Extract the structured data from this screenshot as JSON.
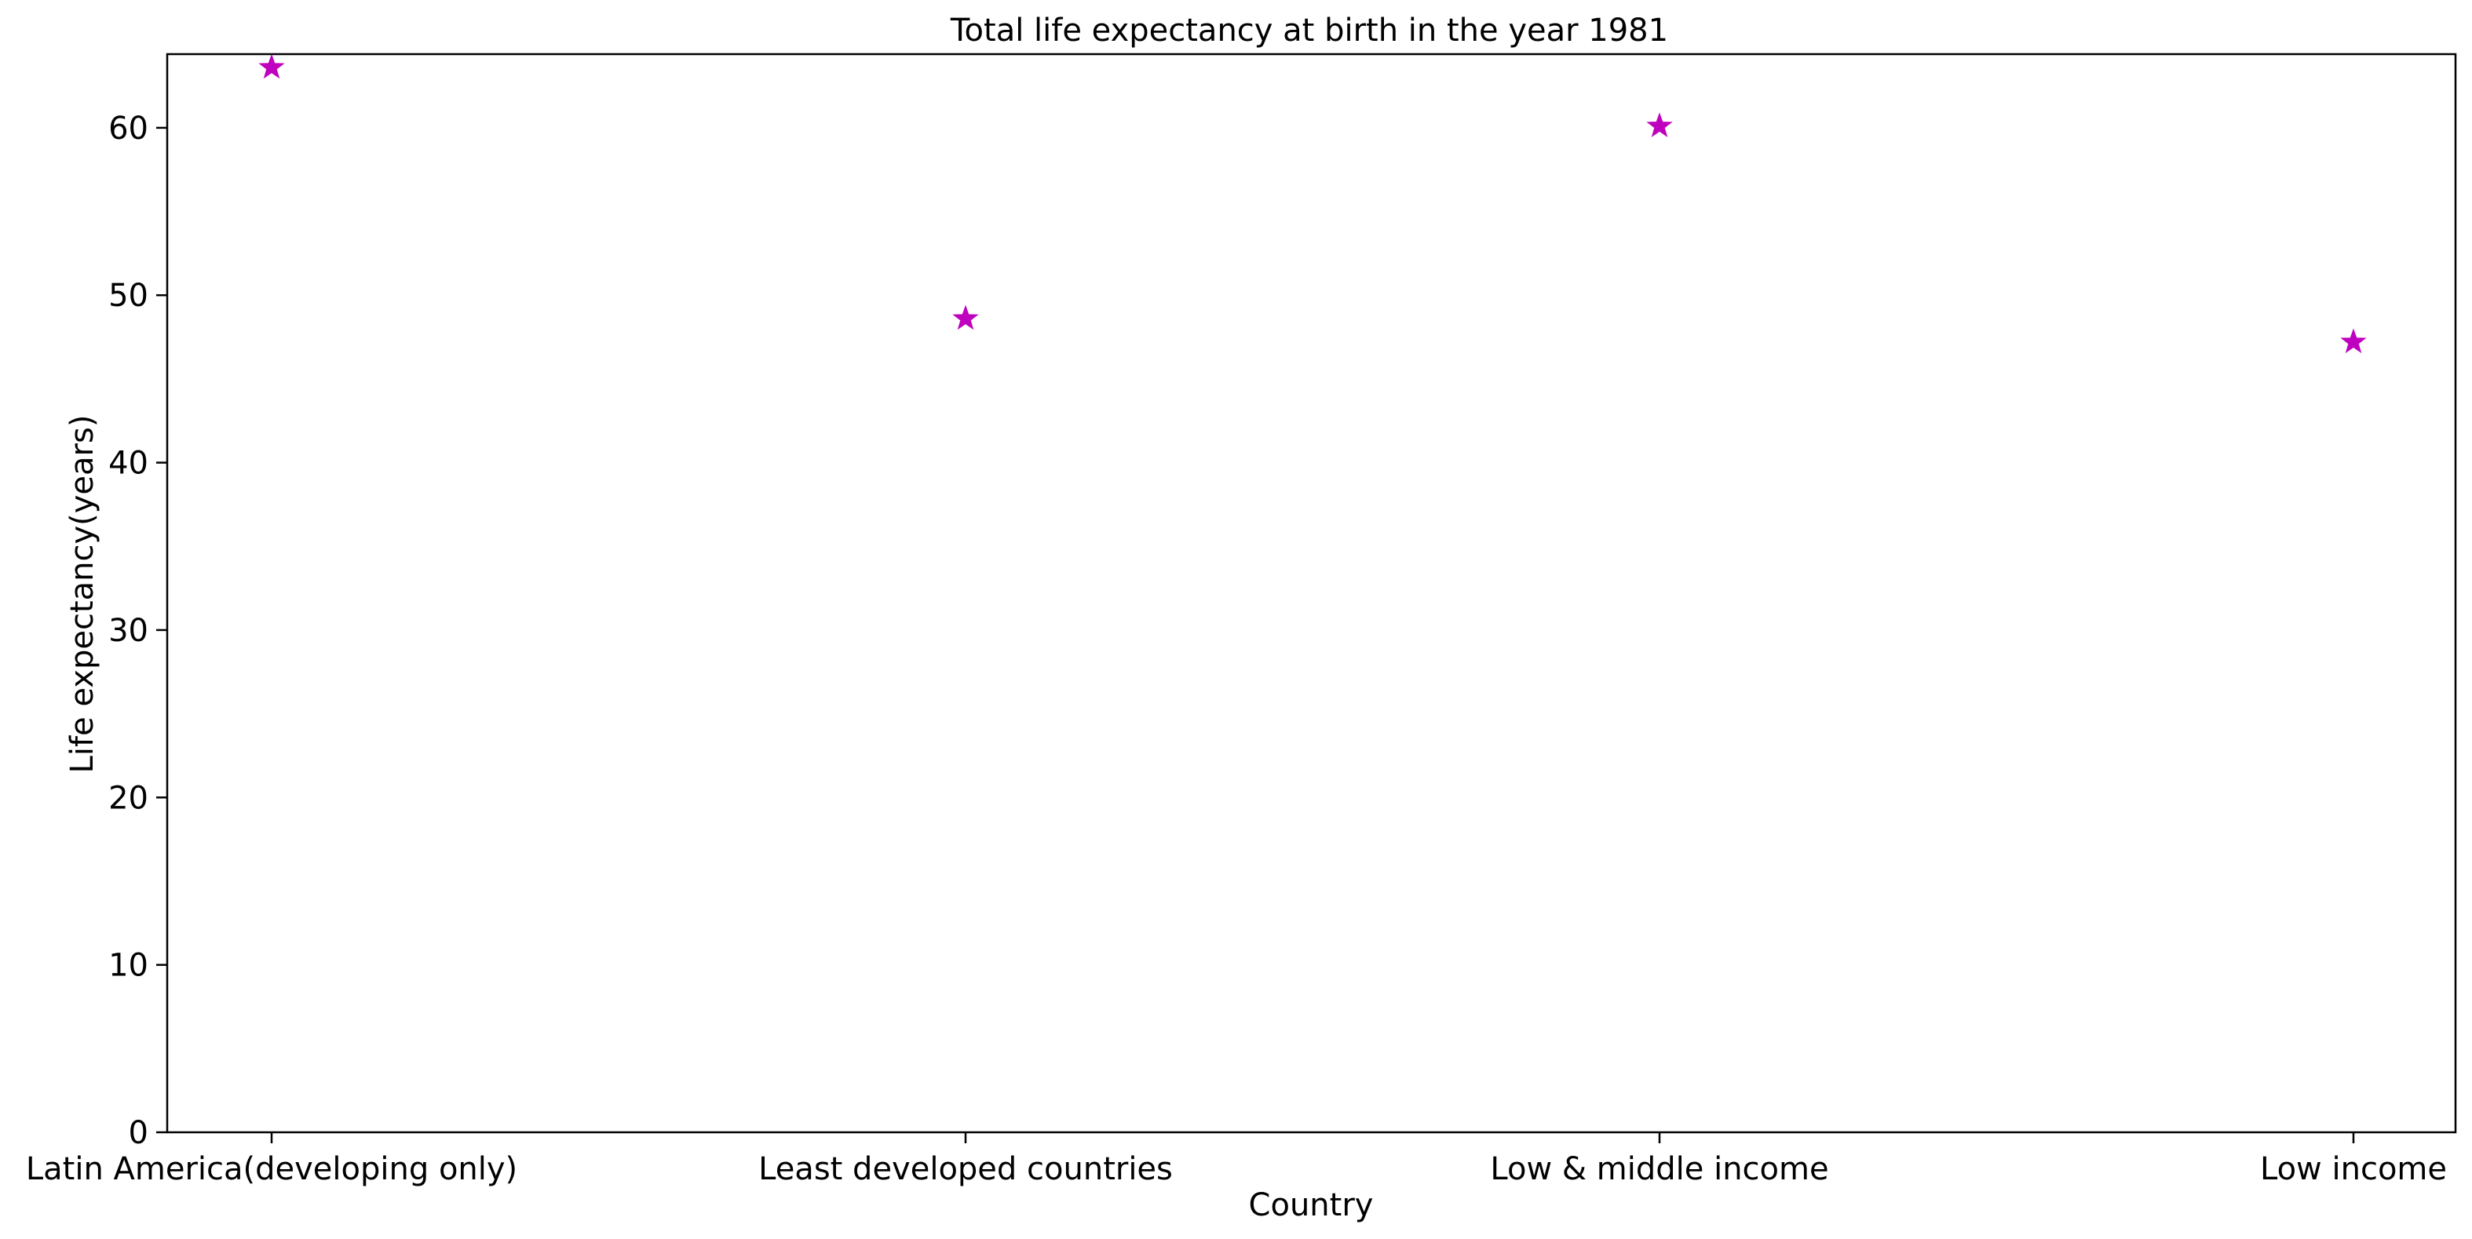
{
  "chart_data": {
    "type": "scatter",
    "title": "Total life expectancy at birth in the year 1981",
    "xlabel": "Country",
    "ylabel": "Life expectancy(years)",
    "categories": [
      "Latin America(developing only)",
      "Least developed countries",
      "Low & middle income",
      "Low income"
    ],
    "values": [
      63.6,
      48.6,
      60.1,
      47.2
    ],
    "ylim": [
      0,
      64.4
    ],
    "yticks": [
      0,
      10,
      20,
      30,
      40,
      50,
      60
    ],
    "marker": "star",
    "marker_color": "#bf00bf",
    "grid": false,
    "legend": false
  }
}
